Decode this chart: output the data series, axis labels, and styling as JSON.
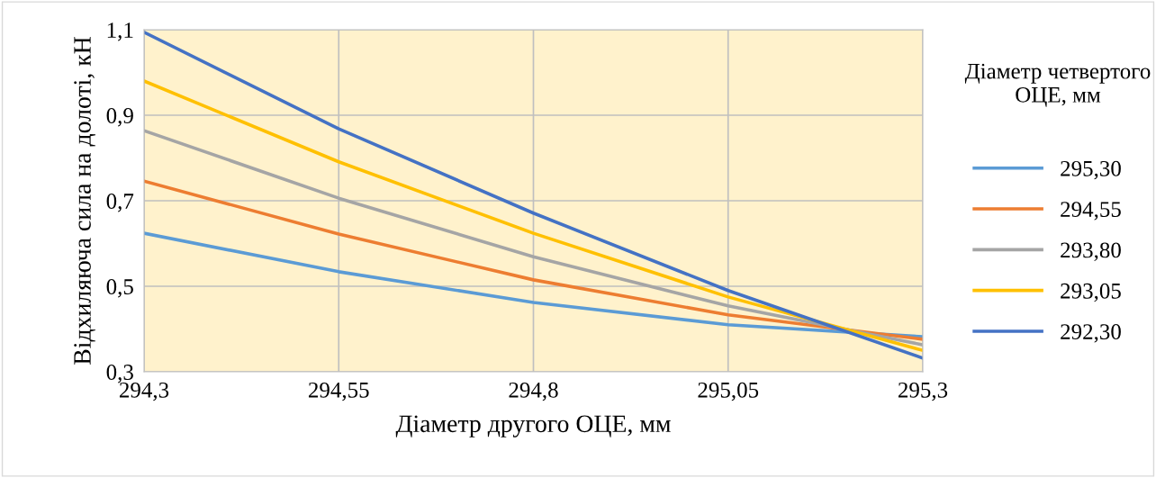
{
  "chart_data": {
    "type": "line",
    "xlabel": "Діаметр другого ОЦЕ, мм",
    "ylabel": "Відхиляюча сила на долоті, кН",
    "legend_title": "Діаметр четвертого ОЦЕ, мм",
    "legend": "right",
    "grid": true,
    "line_style": "solid",
    "marker": "none",
    "x": [
      294.3,
      294.55,
      294.8,
      295.05,
      295.3
    ],
    "xlim": [
      294.3,
      295.3
    ],
    "ylim": [
      0.3,
      1.1
    ],
    "xticks": [
      {
        "value": 294.3,
        "label": "294,3"
      },
      {
        "value": 294.55,
        "label": "294,55"
      },
      {
        "value": 294.8,
        "label": "294,8"
      },
      {
        "value": 295.05,
        "label": "295,05"
      },
      {
        "value": 295.3,
        "label": "295,3"
      }
    ],
    "yticks": [
      {
        "value": 0.3,
        "label": "0,3"
      },
      {
        "value": 0.5,
        "label": "0,5"
      },
      {
        "value": 0.7,
        "label": "0,7"
      },
      {
        "value": 0.9,
        "label": "0,9"
      },
      {
        "value": 1.1,
        "label": "1,1"
      }
    ],
    "series": [
      {
        "name": "295,30",
        "color": "#5b9bd5",
        "values": [
          0.624,
          0.534,
          0.462,
          0.41,
          0.382
        ]
      },
      {
        "name": "294,55",
        "color": "#ed7d31",
        "values": [
          0.746,
          0.622,
          0.515,
          0.433,
          0.376
        ]
      },
      {
        "name": "293,80",
        "color": "#a5a5a5",
        "values": [
          0.864,
          0.706,
          0.569,
          0.454,
          0.363
        ]
      },
      {
        "name": "293,05",
        "color": "#ffc000",
        "values": [
          0.98,
          0.791,
          0.624,
          0.475,
          0.35
        ]
      },
      {
        "name": "292,30",
        "color": "#4472c4",
        "values": [
          1.094,
          0.868,
          0.671,
          0.49,
          0.332
        ]
      }
    ]
  }
}
